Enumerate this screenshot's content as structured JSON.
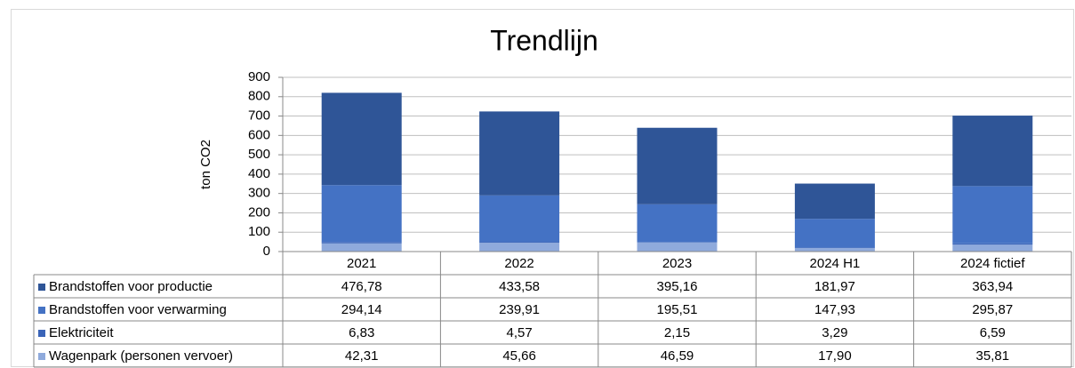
{
  "chart_data": {
    "type": "stacked_bar",
    "title": "Trendlijn",
    "y_label": "ton CO2",
    "categories": [
      "2021",
      "2022",
      "2023",
      "2024 H1",
      "2024 fictief"
    ],
    "series": [
      {
        "name": "Brandstoffen voor productie",
        "color": "#2f5597",
        "values": [
          476.78,
          433.58,
          395.16,
          181.97,
          363.94
        ],
        "value_labels": [
          "476,78",
          "433,58",
          "395,16",
          "181,97",
          "363,94"
        ]
      },
      {
        "name": "Brandstoffen voor verwarming",
        "color": "#4472c4",
        "values": [
          294.14,
          239.91,
          195.51,
          147.93,
          295.87
        ],
        "value_labels": [
          "294,14",
          "239,91",
          "195,51",
          "147,93",
          "295,87"
        ]
      },
      {
        "name": "Elektriciteit",
        "color": "#3a64b8",
        "values": [
          6.83,
          4.57,
          2.15,
          3.29,
          6.59
        ],
        "value_labels": [
          "6,83",
          "4,57",
          "2,15",
          "3,29",
          "6,59"
        ]
      },
      {
        "name": "Wagenpark (personen vervoer)",
        "color": "#8faadc",
        "values": [
          42.31,
          45.66,
          46.59,
          17.9,
          35.81
        ],
        "value_labels": [
          "42,31",
          "45,66",
          "46,59",
          "17,90",
          "35,81"
        ]
      }
    ],
    "ylim": [
      0,
      900
    ],
    "yticks": [
      0,
      100,
      200,
      300,
      400,
      500,
      600,
      700,
      800,
      900
    ],
    "grid": true
  }
}
